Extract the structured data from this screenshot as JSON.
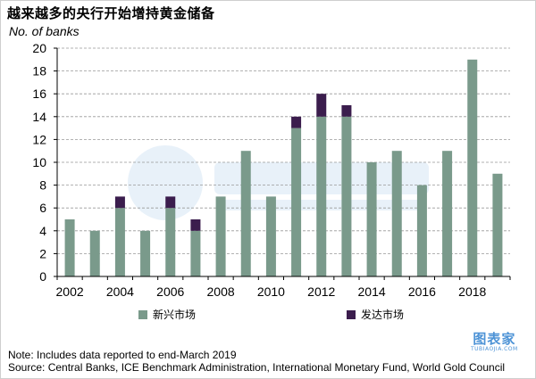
{
  "title": "越来越多的央行开始增持黄金储备",
  "y_unit_label": "No. of banks",
  "legend": {
    "emerging": "新兴市场",
    "developed": "发达市场"
  },
  "notes": {
    "note": "Note: Includes data reported to end-March 2019",
    "source": "Source: Central Banks, ICE Benchmark Administration, International Monetary Fund, World Gold Council"
  },
  "brand": {
    "name": "图表家",
    "sub": "TUBIAOJIA.COM"
  },
  "colors": {
    "emerging": "#7a9a8b",
    "developed": "#3b1d4d",
    "grid": "#999999",
    "axis": "#000000"
  },
  "chart_data": {
    "type": "bar",
    "stacked": true,
    "categories": [
      "2002",
      "2003",
      "2004",
      "2005",
      "2006",
      "2007",
      "2008",
      "2009",
      "2010",
      "2011",
      "2012",
      "2013",
      "2014",
      "2015",
      "2016",
      "2017",
      "2018",
      "2019"
    ],
    "x_tick_labels": [
      "2002",
      "2004",
      "2006",
      "2008",
      "2010",
      "2012",
      "2014",
      "2016",
      "2018"
    ],
    "series": [
      {
        "name": "新兴市场",
        "values": [
          5,
          4,
          6,
          4,
          6,
          4,
          7,
          11,
          7,
          13,
          14,
          14,
          10,
          11,
          8,
          11,
          19,
          9
        ]
      },
      {
        "name": "发达市场",
        "values": [
          0,
          0,
          1,
          0,
          1,
          1,
          0,
          0,
          0,
          1,
          2,
          1,
          0,
          0,
          0,
          0,
          0,
          0
        ]
      }
    ],
    "ylabel": "No. of banks",
    "ylim": [
      0,
      20
    ],
    "yticks": [
      0,
      2,
      4,
      6,
      8,
      10,
      12,
      14,
      16,
      18,
      20
    ],
    "grid": "horizontal dashed",
    "legend_position": "bottom"
  }
}
